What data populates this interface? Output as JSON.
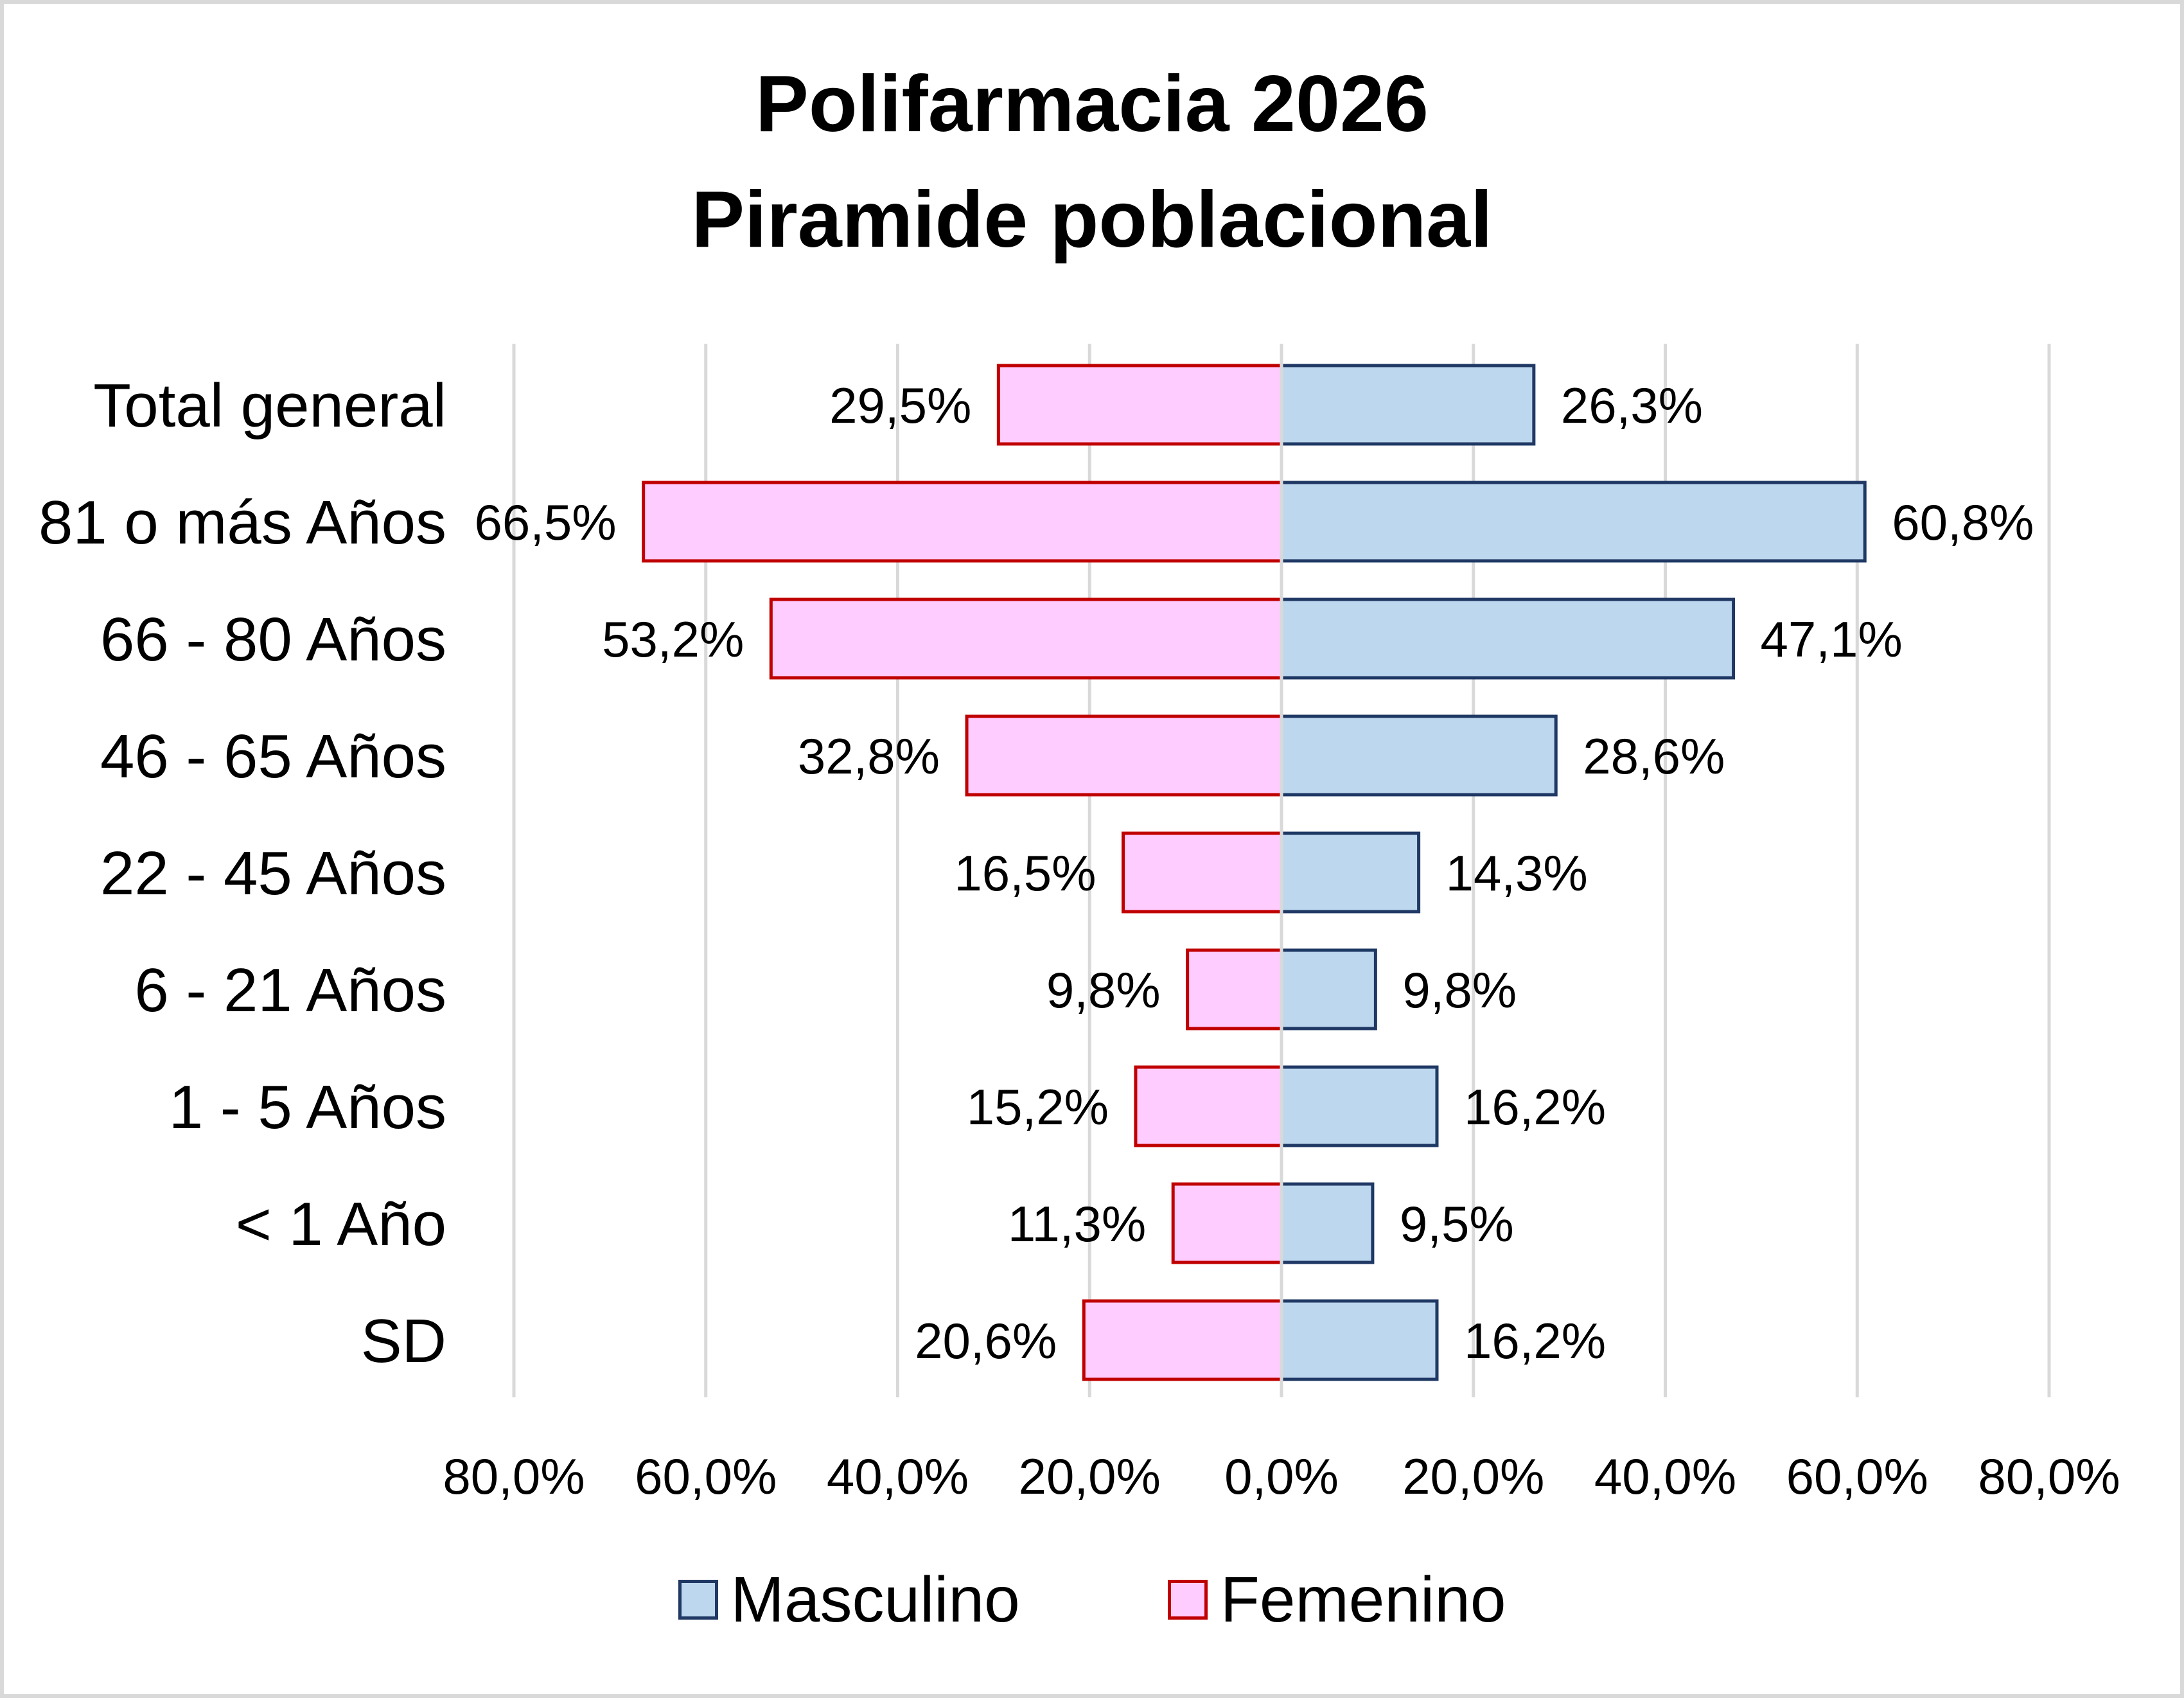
{
  "chart_data": {
    "type": "bar",
    "orientation": "horizontal-pyramid",
    "title": "Polifarmacia 2026",
    "subtitle": "Piramide poblacional",
    "categories": [
      "Total general",
      "81 o más Años",
      "66 - 80 Años",
      "46 - 65 Años",
      "22 - 45 Años",
      "6 - 21 Años",
      "1 - 5 Años",
      "< 1 Año",
      "SD"
    ],
    "series": [
      {
        "name": "Masculino",
        "side": "right",
        "color": "#BDD7EE",
        "border": "#1F3864",
        "values": [
          26.3,
          60.8,
          47.1,
          28.6,
          14.3,
          9.8,
          16.2,
          9.5,
          16.2
        ],
        "labels": [
          "26,3%",
          "60,8%",
          "47,1%",
          "28,6%",
          "14,3%",
          "9,8%",
          "16,2%",
          "9,5%",
          "16,2%"
        ]
      },
      {
        "name": "Femenino",
        "side": "left",
        "color": "#FFCCFF",
        "border": "#C00000",
        "values": [
          29.5,
          66.5,
          53.2,
          32.8,
          16.5,
          9.8,
          15.2,
          11.3,
          20.6
        ],
        "labels": [
          "29,5%",
          "66,5%",
          "53,2%",
          "32,8%",
          "16,5%",
          "9,8%",
          "15,2%",
          "11,3%",
          "20,6%"
        ]
      }
    ],
    "xlim": [
      -80,
      80
    ],
    "xticks": [
      -80,
      -60,
      -40,
      -20,
      0,
      20,
      40,
      60,
      80
    ],
    "xtick_labels": [
      "80,0%",
      "60,0%",
      "40,0%",
      "20,0%",
      "0,0%",
      "20,0%",
      "40,0%",
      "60,0%",
      "80,0%"
    ],
    "grid": true,
    "legend_position": "bottom"
  }
}
